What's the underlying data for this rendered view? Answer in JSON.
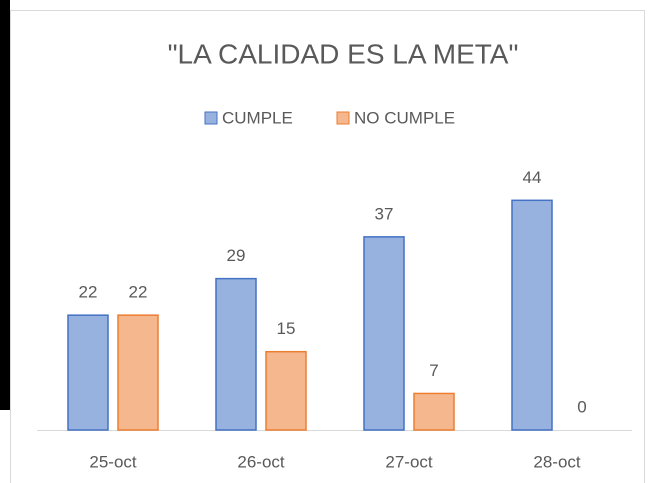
{
  "chart_data": {
    "type": "bar",
    "title": "\"LA CALIDAD ES LA META\"",
    "categories": [
      "25-oct",
      "26-oct",
      "27-oct",
      "28-oct"
    ],
    "series": [
      {
        "name": "CUMPLE",
        "color": "#4472c4",
        "values": [
          22,
          29,
          37,
          44
        ]
      },
      {
        "name": "NO CUMPLE",
        "color": "#ed7d31",
        "values": [
          22,
          15,
          7,
          0
        ]
      }
    ],
    "ylim": [
      0,
      50
    ],
    "legend": "top"
  }
}
